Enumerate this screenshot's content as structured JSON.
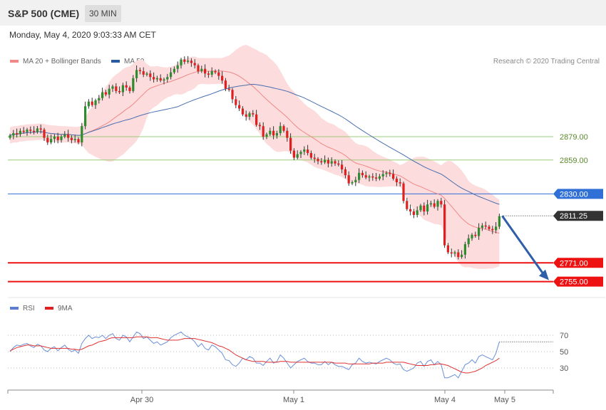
{
  "header": {
    "symbol": "S&P 500 (CME)",
    "timeframe": "30 MIN",
    "datetime": "Monday, May 4, 2020 9:03:33 AM CET"
  },
  "credit": "Research © 2020 Trading Central",
  "colors": {
    "up": "#2e8b2e",
    "down": "#e02020",
    "bb_fill": "#fcdcdc",
    "ma20": "#f08888",
    "ma50": "#4a6fb0",
    "level_green": "#9ccc78",
    "level_blue": "#2f6fd6",
    "level_red": "#ee1111",
    "current_bg": "#333333",
    "arrow": "#2f5fa8",
    "rsi": "#6a8fd8",
    "rsi_ma": "#e03030"
  },
  "chart_data": [
    {
      "type": "candlestick",
      "legend": [
        {
          "name": "MA 20 + Bollinger Bands",
          "color": "#f08888"
        },
        {
          "name": "MA 50",
          "color": "#2b5aa0"
        }
      ],
      "x_ticks": [
        "Apr 30",
        "May 1",
        "May 4",
        "May 5"
      ],
      "ylim": [
        2745,
        2935
      ],
      "closes": [
        2880,
        2882,
        2881,
        2884,
        2883,
        2885,
        2884,
        2883,
        2886,
        2885,
        2878,
        2874,
        2877,
        2879,
        2876,
        2879,
        2881,
        2878,
        2876,
        2877,
        2874,
        2888,
        2905,
        2909,
        2906,
        2910,
        2912,
        2917,
        2915,
        2920,
        2922,
        2918,
        2917,
        2923,
        2921,
        2918,
        2929,
        2936,
        2935,
        2932,
        2933,
        2930,
        2928,
        2929,
        2927,
        2928,
        2930,
        2934,
        2937,
        2940,
        2945,
        2943,
        2944,
        2942,
        2940,
        2935,
        2937,
        2933,
        2932,
        2935,
        2934,
        2931,
        2927,
        2920,
        2919,
        2911,
        2906,
        2903,
        2898,
        2896,
        2899,
        2898,
        2889,
        2888,
        2879,
        2881,
        2884,
        2880,
        2882,
        2888,
        2884,
        2878,
        2867,
        2861,
        2864,
        2866,
        2868,
        2865,
        2861,
        2860,
        2858,
        2857,
        2859,
        2856,
        2858,
        2856,
        2855,
        2851,
        2846,
        2839,
        2840,
        2842,
        2848,
        2846,
        2844,
        2845,
        2844,
        2843,
        2845,
        2847,
        2848,
        2847,
        2843,
        2840,
        2839,
        2824,
        2817,
        2815,
        2812,
        2816,
        2820,
        2815,
        2821,
        2822,
        2819,
        2824,
        2821,
        2786,
        2780,
        2779,
        2780,
        2776,
        2778,
        2787,
        2792,
        2795,
        2794,
        2801,
        2803,
        2802,
        2800,
        2799,
        2802,
        2811
      ],
      "series": [
        {
          "name": "MA 20 + Bollinger Bands",
          "type": "line"
        },
        {
          "name": "MA 50",
          "type": "line"
        }
      ],
      "levels": [
        {
          "value": 2879.0,
          "label": "2879.00",
          "style": "green-thin"
        },
        {
          "value": 2859.0,
          "label": "2859.00",
          "style": "green-thin"
        },
        {
          "value": 2830.0,
          "label": "2830.00",
          "style": "blue"
        },
        {
          "value": 2811.25,
          "label": "2811.25",
          "style": "current"
        },
        {
          "value": 2771.0,
          "label": "2771.00",
          "style": "red"
        },
        {
          "value": 2755.0,
          "label": "2755.00",
          "style": "red"
        }
      ],
      "arrow": {
        "from": 2811.25,
        "to": 2755.0
      }
    },
    {
      "type": "line",
      "legend": [
        {
          "name": "RSI",
          "color": "#5b7fd0"
        },
        {
          "name": "9MA",
          "color": "#e02020"
        }
      ],
      "ylim": [
        10,
        90
      ],
      "y_ticks": [
        "70",
        "50",
        "30"
      ],
      "reference_levels": [
        70,
        50,
        30
      ],
      "series": [
        {
          "name": "RSI",
          "values": [
            50,
            55,
            58,
            57,
            59,
            60,
            57,
            55,
            59,
            57,
            52,
            50,
            54,
            56,
            51,
            55,
            58,
            53,
            50,
            52,
            48,
            60,
            66,
            70,
            66,
            68,
            67,
            70,
            66,
            70,
            72,
            66,
            64,
            70,
            68,
            62,
            68,
            74,
            72,
            66,
            68,
            64,
            60,
            62,
            58,
            60,
            62,
            67,
            70,
            72,
            74,
            70,
            68,
            66,
            62,
            56,
            60,
            54,
            52,
            58,
            56,
            52,
            48,
            40,
            39,
            34,
            32,
            36,
            42,
            40,
            44,
            42,
            36,
            36,
            33,
            38,
            42,
            36,
            38,
            46,
            42,
            36,
            30,
            34,
            38,
            40,
            42,
            38,
            36,
            36,
            34,
            34,
            38,
            34,
            37,
            34,
            32,
            32,
            30,
            28,
            34,
            36,
            42,
            38,
            36,
            37,
            36,
            35,
            38,
            40,
            42,
            40,
            36,
            34,
            35,
            28,
            26,
            28,
            30,
            36,
            38,
            32,
            38,
            40,
            34,
            38,
            34,
            18,
            18,
            20,
            22,
            18,
            26,
            34,
            36,
            40,
            36,
            44,
            46,
            44,
            42,
            40,
            48,
            62
          ]
        },
        {
          "name": "9MA",
          "values": [
            51,
            53,
            55,
            56,
            57,
            58,
            58,
            57,
            57,
            57,
            56,
            55,
            54,
            54,
            54,
            54,
            54,
            54,
            53,
            53,
            52,
            53,
            55,
            57,
            58,
            60,
            62,
            63,
            64,
            66,
            67,
            67,
            67,
            67,
            67,
            67,
            67,
            68,
            68,
            68,
            68,
            67,
            67,
            67,
            66,
            65,
            64,
            64,
            64,
            64,
            65,
            66,
            66,
            66,
            66,
            65,
            64,
            63,
            62,
            61,
            59,
            57,
            56,
            54,
            52,
            49,
            46,
            44,
            42,
            40,
            39,
            38,
            38,
            38,
            38,
            37,
            37,
            37,
            37,
            38,
            38,
            38,
            37,
            37,
            37,
            37,
            37,
            37,
            37,
            37,
            37,
            37,
            37,
            37,
            37,
            36,
            36,
            36,
            36,
            35,
            35,
            35,
            35,
            35,
            35,
            35,
            36,
            36,
            36,
            36,
            37,
            37,
            37,
            37,
            37,
            37,
            36,
            35,
            34,
            33,
            33,
            33,
            33,
            34,
            34,
            35,
            35,
            34,
            33,
            31,
            29,
            27,
            25,
            24,
            24,
            25,
            26,
            28,
            30,
            33,
            35,
            37,
            39,
            42
          ]
        }
      ]
    }
  ]
}
